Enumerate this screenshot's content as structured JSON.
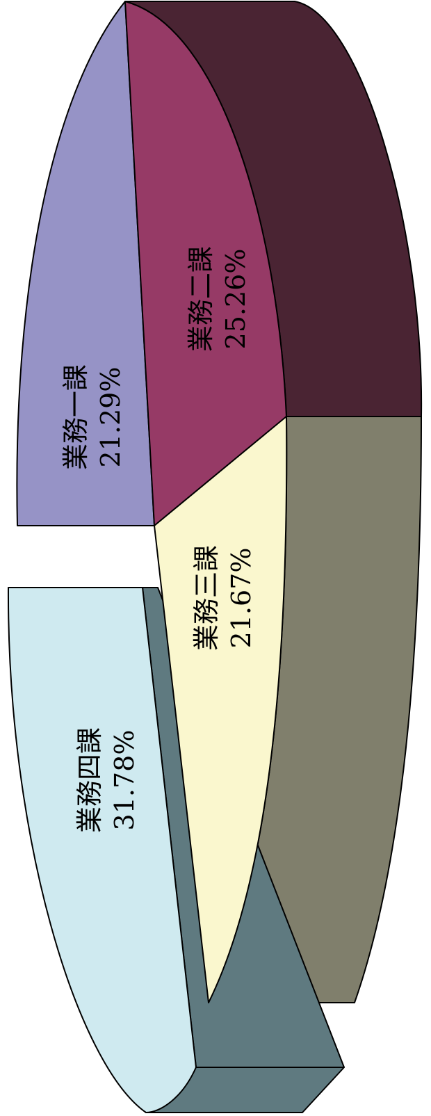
{
  "chart_data": {
    "type": "pie",
    "style": "3d-exploded",
    "orientation": "rotated-90-ccw",
    "slices": [
      {
        "name": "業務一課",
        "value": 21.29,
        "value_label": "21.29%",
        "color": "#9693c6",
        "side_color": "#6f6c9a"
      },
      {
        "name": "業務二課",
        "value": 25.26,
        "value_label": "25.26%",
        "color": "#963a66",
        "side_color": "#4a2433"
      },
      {
        "name": "業務三課",
        "value": 21.67,
        "value_label": "21.67%",
        "color": "#faf7ce",
        "side_color": "#807f6c"
      },
      {
        "name": "業務四課",
        "value": 31.78,
        "value_label": "31.78%",
        "color": "#cfeaf0",
        "side_color": "#5f7a80"
      }
    ]
  }
}
